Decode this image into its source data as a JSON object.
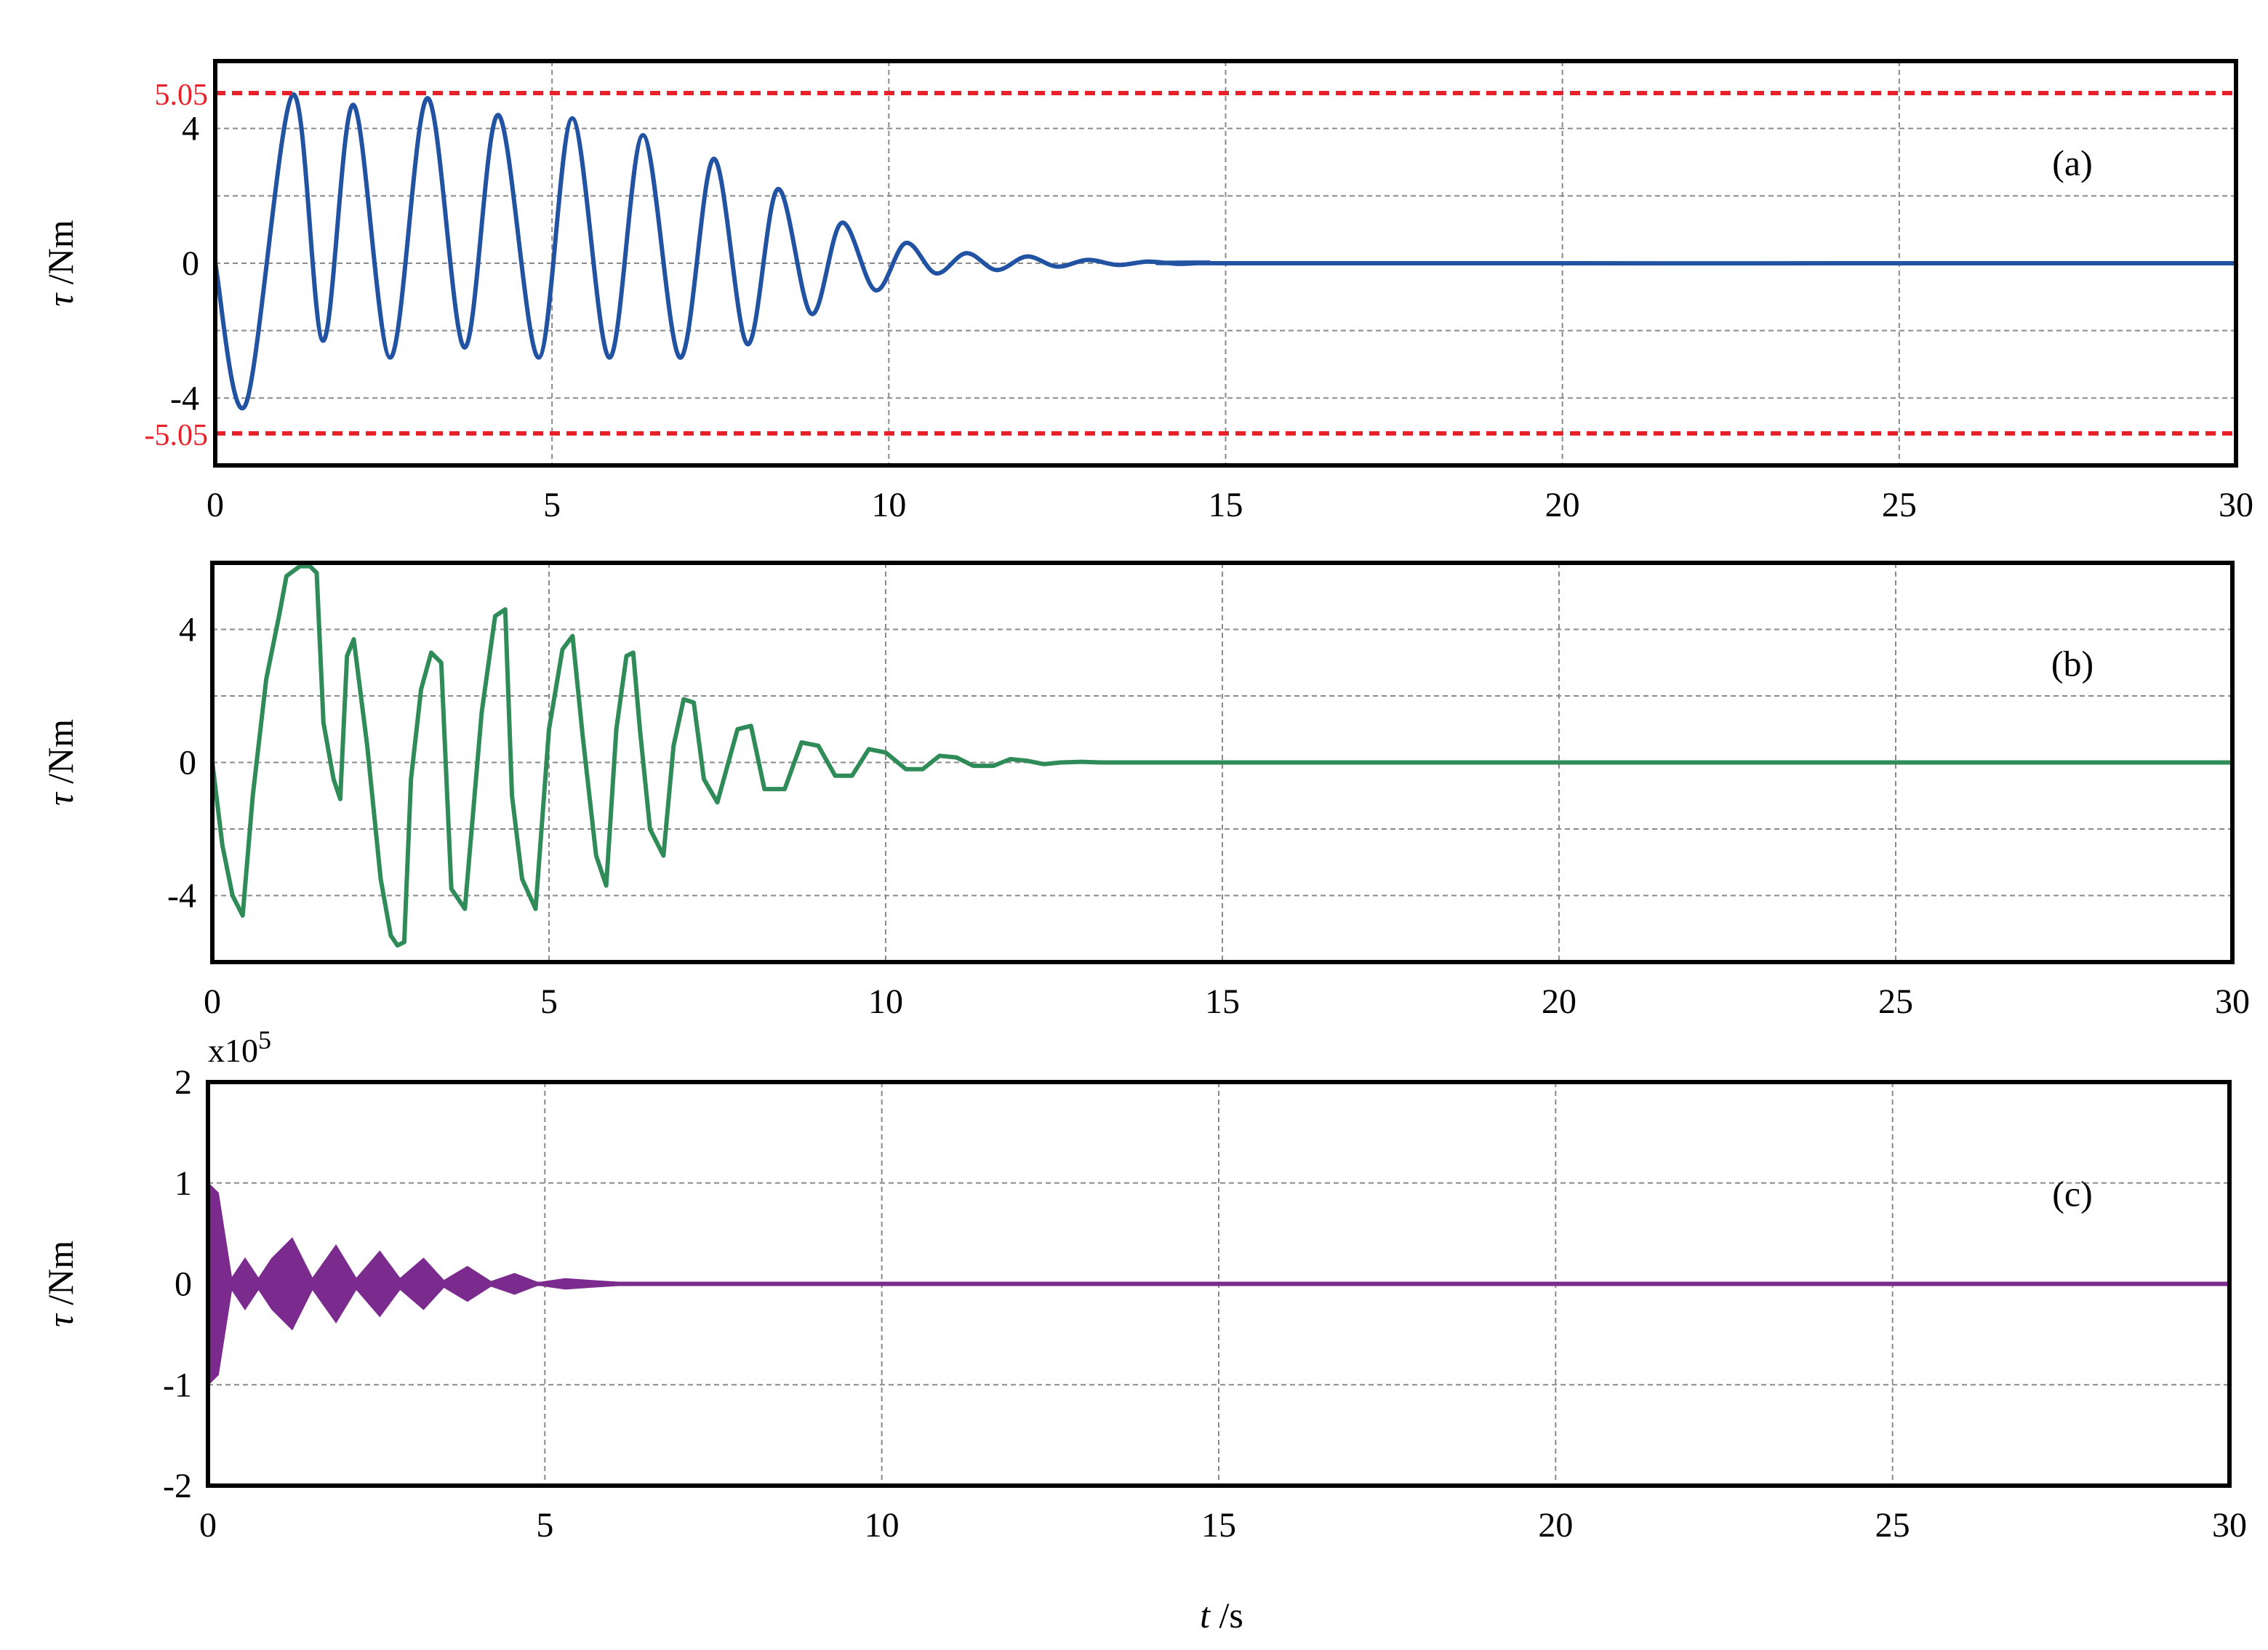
{
  "figure": {
    "xlabel_var": "t",
    "xlabel_unit": " /s"
  },
  "chart_data": [
    {
      "type": "line",
      "panel_label": "(a)",
      "ylabel_var": "τ",
      "ylabel_unit": " /Nm",
      "xlim": [
        0,
        30
      ],
      "ylim": [
        -6,
        6
      ],
      "x_ticks": [
        0,
        5,
        10,
        15,
        20,
        25,
        30
      ],
      "y_ticks": [
        -4,
        0,
        4
      ],
      "y_grid": [
        -4,
        -2,
        0,
        2,
        4
      ],
      "line_color": "#2253a3",
      "limit_color": "#e8202a",
      "limit_lines": [
        {
          "value": 5.05,
          "label": "5.05"
        },
        {
          "value": -5.05,
          "label": "-5.05"
        }
      ],
      "series": [
        {
          "x": [
            0.0,
            0.45,
            1.15,
            1.6,
            2.05,
            2.6,
            3.15,
            3.7,
            4.2,
            4.8,
            5.3,
            5.85,
            6.35,
            6.9,
            7.4,
            7.9,
            8.35,
            8.85,
            9.3,
            9.8,
            10.25,
            10.7,
            11.15,
            11.6,
            12.05,
            12.5,
            12.95,
            13.4,
            13.85,
            14.3,
            14.75,
            15.2,
            30.0
          ],
          "y": [
            0.0,
            -4.2,
            5.0,
            -2.3,
            4.7,
            -2.8,
            4.9,
            -2.5,
            4.4,
            -2.8,
            4.3,
            -2.8,
            3.8,
            -2.8,
            3.1,
            -2.4,
            2.2,
            -1.5,
            1.2,
            -0.8,
            0.6,
            -0.3,
            0.3,
            -0.2,
            0.2,
            -0.1,
            0.1,
            -0.05,
            0.05,
            -0.02,
            0.02,
            0.0,
            0.0
          ]
        }
      ]
    },
    {
      "type": "line",
      "panel_label": "(b)",
      "ylabel_var": "τ",
      "ylabel_unit": " /Nm",
      "xlim": [
        0,
        30
      ],
      "ylim": [
        -6,
        6
      ],
      "x_ticks": [
        0,
        5,
        10,
        15,
        20,
        25,
        30
      ],
      "y_ticks": [
        -4,
        0,
        4
      ],
      "y_grid": [
        -4,
        -2,
        0,
        2,
        4
      ],
      "line_color": "#2f8b57",
      "series": [
        {
          "x": [
            0.0,
            0.15,
            0.3,
            0.45,
            0.6,
            0.8,
            1.0,
            1.1,
            1.3,
            1.45,
            1.55,
            1.65,
            1.8,
            1.9,
            2.0,
            2.1,
            2.3,
            2.5,
            2.65,
            2.75,
            2.85,
            2.95,
            3.1,
            3.25,
            3.4,
            3.55,
            3.75,
            4.0,
            4.2,
            4.35,
            4.45,
            4.6,
            4.8,
            5.0,
            5.2,
            5.35,
            5.5,
            5.7,
            5.85,
            6.0,
            6.15,
            6.25,
            6.35,
            6.5,
            6.7,
            6.85,
            7.0,
            7.15,
            7.3,
            7.5,
            7.8,
            8.0,
            8.2,
            8.5,
            8.75,
            9.0,
            9.25,
            9.5,
            9.75,
            10.0,
            10.3,
            10.55,
            10.8,
            11.05,
            11.3,
            11.6,
            11.85,
            12.1,
            12.35,
            12.6,
            12.9,
            13.2,
            13.6,
            14.0,
            14.4,
            14.8,
            30.0
          ],
          "y": [
            0.0,
            -2.5,
            -4.0,
            -4.6,
            -1.0,
            2.5,
            4.5,
            5.6,
            5.9,
            5.9,
            5.7,
            1.2,
            -0.5,
            -1.1,
            3.2,
            3.7,
            0.5,
            -3.5,
            -5.2,
            -5.5,
            -5.4,
            -0.5,
            2.2,
            3.3,
            3.0,
            -3.8,
            -4.4,
            1.5,
            4.4,
            4.6,
            -1.0,
            -3.5,
            -4.4,
            1.0,
            3.4,
            3.8,
            0.8,
            -2.8,
            -3.7,
            1.0,
            3.2,
            3.3,
            1.0,
            -2.0,
            -2.8,
            0.5,
            1.9,
            1.8,
            -0.5,
            -1.2,
            1.0,
            1.1,
            -0.8,
            -0.8,
            0.6,
            0.5,
            -0.4,
            -0.4,
            0.4,
            0.3,
            -0.2,
            -0.2,
            0.2,
            0.15,
            -0.1,
            -0.1,
            0.1,
            0.05,
            -0.05,
            0.0,
            0.02,
            0.0,
            0.0,
            0.0,
            0.0,
            0.0,
            0.0
          ]
        }
      ]
    },
    {
      "type": "line",
      "panel_label": "(c)",
      "ylabel_var": "τ",
      "ylabel_unit": " /Nm",
      "scale_label": "x10",
      "scale_exponent": "5",
      "xlim": [
        0,
        30
      ],
      "ylim": [
        -2,
        2
      ],
      "x_ticks": [
        0,
        5,
        10,
        15,
        20,
        25,
        30
      ],
      "y_ticks": [
        -2,
        -1,
        0,
        1,
        2
      ],
      "y_grid": [
        -1,
        0,
        1
      ],
      "line_color": "#7b2a8e",
      "series": [
        {
          "envelope_x": [
            0.0,
            0.15,
            0.35,
            0.55,
            0.75,
            0.95,
            1.25,
            1.55,
            1.9,
            2.2,
            2.55,
            2.85,
            3.2,
            3.5,
            3.85,
            4.2,
            4.55,
            4.9,
            5.3,
            5.7,
            6.2,
            6.8,
            30.0
          ],
          "envelope_amp": [
            1.0,
            0.9,
            0.05,
            0.25,
            0.05,
            0.25,
            0.45,
            0.05,
            0.38,
            0.05,
            0.32,
            0.05,
            0.25,
            0.03,
            0.17,
            0.02,
            0.1,
            0.01,
            0.05,
            0.03,
            0.01,
            0.0,
            0.0
          ]
        }
      ]
    }
  ]
}
